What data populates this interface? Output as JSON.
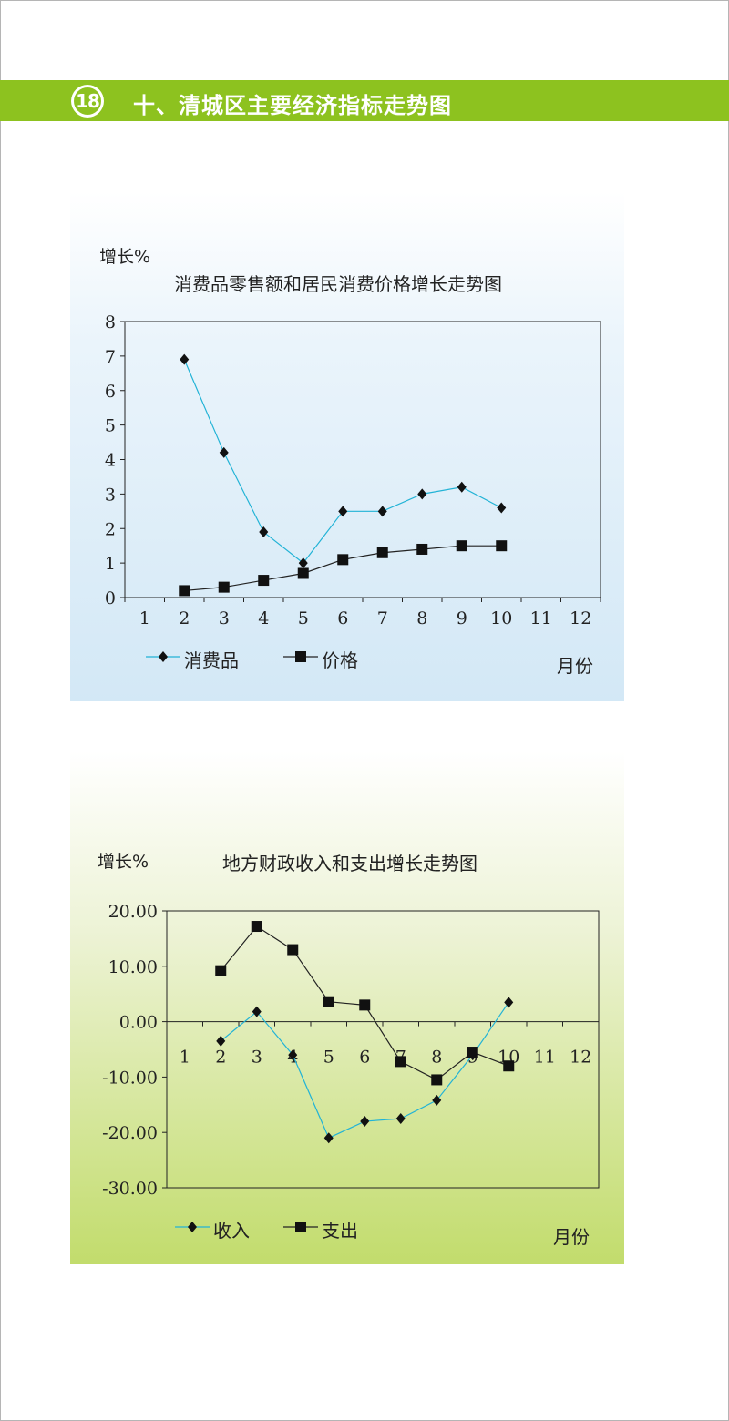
{
  "header": {
    "badge_number": "18",
    "title": "十、清城区主要经济指标走势图",
    "bar_color": "#8dc21f"
  },
  "chart_data": [
    {
      "type": "line",
      "title": "消费品零售额和居民消费价格增长走势图",
      "ylabel": "增长%",
      "xlabel": "月份",
      "categories": [
        "1",
        "2",
        "3",
        "4",
        "5",
        "6",
        "7",
        "8",
        "9",
        "10",
        "11",
        "12"
      ],
      "ylim": [
        0,
        8
      ],
      "yticks": [
        "0",
        "1",
        "2",
        "3",
        "4",
        "5",
        "6",
        "7",
        "8"
      ],
      "grid": false,
      "legend_position": "bottom-left",
      "series": [
        {
          "name": "消费品",
          "marker": "diamond",
          "color": "#22b3d6",
          "values": [
            null,
            6.9,
            4.2,
            1.9,
            1.0,
            2.5,
            2.5,
            3.0,
            3.2,
            2.6,
            null,
            null
          ]
        },
        {
          "name": "价格",
          "marker": "square",
          "color": "#222222",
          "values": [
            null,
            0.2,
            0.3,
            0.5,
            0.7,
            1.1,
            1.3,
            1.4,
            1.5,
            1.5,
            null,
            null
          ]
        }
      ]
    },
    {
      "type": "line",
      "title": "地方财政收入和支出增长走势图",
      "ylabel": "增长%",
      "xlabel": "月份",
      "categories": [
        "1",
        "2",
        "3",
        "4",
        "5",
        "6",
        "7",
        "8",
        "9",
        "10",
        "11",
        "12"
      ],
      "ylim": [
        -30,
        20
      ],
      "yticks": [
        "-30.00",
        "-20.00",
        "-10.00",
        "0.00",
        "10.00",
        "20.00"
      ],
      "grid": false,
      "legend_position": "bottom-left",
      "series": [
        {
          "name": "收入",
          "marker": "diamond",
          "color": "#22b3d6",
          "values": [
            null,
            -3.5,
            1.8,
            -6.0,
            -21.0,
            -18.0,
            -17.5,
            -14.2,
            -6.0,
            3.5,
            null,
            null
          ]
        },
        {
          "name": "支出",
          "marker": "square",
          "color": "#222222",
          "values": [
            null,
            9.2,
            17.2,
            13.0,
            3.6,
            3.0,
            -7.2,
            -10.5,
            -5.5,
            -8.0,
            null,
            null
          ]
        }
      ]
    }
  ]
}
